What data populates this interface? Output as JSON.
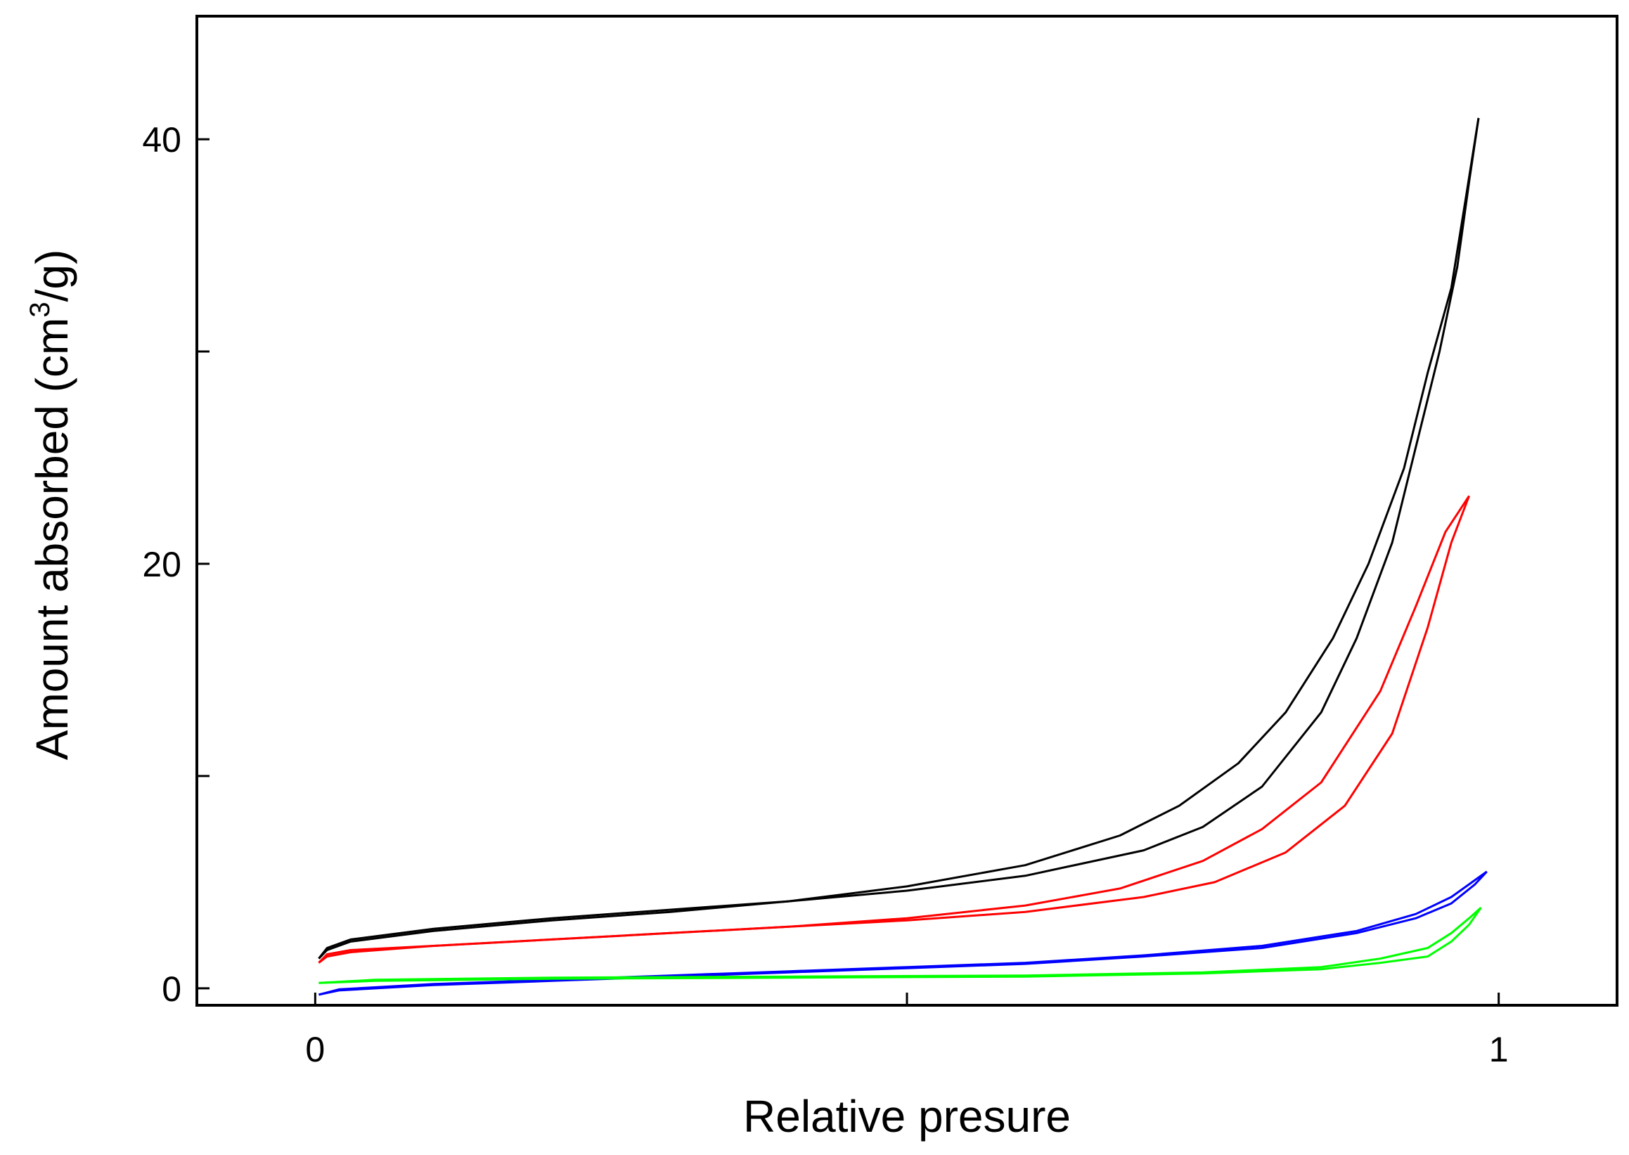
{
  "chart_data": {
    "type": "line",
    "title": "",
    "xlabel": "Relative presure",
    "ylabel": {
      "prefix": "Amount absorbed (cm",
      "superscript": "3",
      "suffix": "/g)"
    },
    "xlim": [
      -0.1,
      1.1
    ],
    "ylim": [
      -0.8,
      45.8
    ],
    "x_ticks": [
      {
        "value": 0,
        "label": "0"
      },
      {
        "value": 0.5,
        "label": ""
      },
      {
        "value": 1,
        "label": "1"
      }
    ],
    "y_ticks": [
      {
        "value": 0,
        "label": "0"
      },
      {
        "value": 10,
        "label": ""
      },
      {
        "value": 20,
        "label": "20"
      },
      {
        "value": 30,
        "label": ""
      },
      {
        "value": 40,
        "label": "40"
      }
    ],
    "grid": false,
    "series": [
      {
        "name": "black",
        "color": "#000000",
        "adsorption": [
          [
            0.003,
            1.4
          ],
          [
            0.01,
            1.8
          ],
          [
            0.03,
            2.2
          ],
          [
            0.1,
            2.7
          ],
          [
            0.2,
            3.2
          ],
          [
            0.3,
            3.6
          ],
          [
            0.4,
            4.1
          ],
          [
            0.5,
            4.6
          ],
          [
            0.6,
            5.3
          ],
          [
            0.7,
            6.5
          ],
          [
            0.75,
            7.6
          ],
          [
            0.8,
            9.5
          ],
          [
            0.85,
            13
          ],
          [
            0.88,
            16.5
          ],
          [
            0.91,
            21
          ],
          [
            0.93,
            25.5
          ],
          [
            0.95,
            30
          ],
          [
            0.965,
            34
          ],
          [
            0.975,
            38
          ],
          [
            0.983,
            41
          ]
        ],
        "desorption": [
          [
            0.003,
            1.4
          ],
          [
            0.01,
            1.9
          ],
          [
            0.03,
            2.3
          ],
          [
            0.1,
            2.8
          ],
          [
            0.2,
            3.3
          ],
          [
            0.3,
            3.7
          ],
          [
            0.4,
            4.1
          ],
          [
            0.5,
            4.8
          ],
          [
            0.6,
            5.8
          ],
          [
            0.68,
            7.2
          ],
          [
            0.73,
            8.6
          ],
          [
            0.78,
            10.6
          ],
          [
            0.82,
            13
          ],
          [
            0.86,
            16.5
          ],
          [
            0.89,
            20
          ],
          [
            0.92,
            24.5
          ],
          [
            0.94,
            29
          ],
          [
            0.96,
            33
          ],
          [
            0.973,
            37.5
          ],
          [
            0.983,
            41
          ]
        ]
      },
      {
        "name": "red",
        "color": "#ff0000",
        "adsorption": [
          [
            0.003,
            1.2
          ],
          [
            0.01,
            1.5
          ],
          [
            0.03,
            1.7
          ],
          [
            0.1,
            2.0
          ],
          [
            0.2,
            2.3
          ],
          [
            0.3,
            2.6
          ],
          [
            0.4,
            2.9
          ],
          [
            0.5,
            3.2
          ],
          [
            0.6,
            3.6
          ],
          [
            0.7,
            4.3
          ],
          [
            0.76,
            5.0
          ],
          [
            0.82,
            6.4
          ],
          [
            0.87,
            8.6
          ],
          [
            0.91,
            12
          ],
          [
            0.94,
            17
          ],
          [
            0.96,
            21
          ],
          [
            0.975,
            23.2
          ]
        ],
        "desorption": [
          [
            0.003,
            1.2
          ],
          [
            0.01,
            1.6
          ],
          [
            0.03,
            1.8
          ],
          [
            0.1,
            2.0
          ],
          [
            0.2,
            2.3
          ],
          [
            0.3,
            2.6
          ],
          [
            0.4,
            2.9
          ],
          [
            0.5,
            3.3
          ],
          [
            0.6,
            3.9
          ],
          [
            0.68,
            4.7
          ],
          [
            0.75,
            6.0
          ],
          [
            0.8,
            7.5
          ],
          [
            0.85,
            9.7
          ],
          [
            0.9,
            14
          ],
          [
            0.93,
            18
          ],
          [
            0.955,
            21.5
          ],
          [
            0.975,
            23.2
          ]
        ]
      },
      {
        "name": "blue",
        "color": "#0000ff",
        "adsorption": [
          [
            0.003,
            -0.3
          ],
          [
            0.02,
            -0.1
          ],
          [
            0.1,
            0.15
          ],
          [
            0.2,
            0.35
          ],
          [
            0.3,
            0.55
          ],
          [
            0.4,
            0.75
          ],
          [
            0.5,
            0.95
          ],
          [
            0.6,
            1.15
          ],
          [
            0.7,
            1.5
          ],
          [
            0.8,
            1.9
          ],
          [
            0.88,
            2.6
          ],
          [
            0.93,
            3.3
          ],
          [
            0.96,
            4.0
          ],
          [
            0.98,
            4.9
          ],
          [
            0.99,
            5.5
          ]
        ],
        "desorption": [
          [
            0.003,
            -0.3
          ],
          [
            0.02,
            -0.05
          ],
          [
            0.1,
            0.2
          ],
          [
            0.2,
            0.4
          ],
          [
            0.3,
            0.6
          ],
          [
            0.4,
            0.8
          ],
          [
            0.5,
            1.0
          ],
          [
            0.6,
            1.2
          ],
          [
            0.7,
            1.55
          ],
          [
            0.8,
            2.0
          ],
          [
            0.88,
            2.7
          ],
          [
            0.93,
            3.5
          ],
          [
            0.96,
            4.3
          ],
          [
            0.98,
            5.1
          ],
          [
            0.99,
            5.5
          ]
        ]
      },
      {
        "name": "green",
        "color": "#00ff00",
        "adsorption": [
          [
            0.003,
            0.25
          ],
          [
            0.05,
            0.35
          ],
          [
            0.2,
            0.45
          ],
          [
            0.4,
            0.5
          ],
          [
            0.6,
            0.55
          ],
          [
            0.75,
            0.7
          ],
          [
            0.85,
            0.9
          ],
          [
            0.9,
            1.2
          ],
          [
            0.94,
            1.5
          ],
          [
            0.96,
            2.2
          ],
          [
            0.975,
            3.0
          ],
          [
            0.985,
            3.8
          ]
        ],
        "desorption": [
          [
            0.003,
            0.25
          ],
          [
            0.05,
            0.4
          ],
          [
            0.2,
            0.5
          ],
          [
            0.4,
            0.55
          ],
          [
            0.6,
            0.6
          ],
          [
            0.75,
            0.75
          ],
          [
            0.85,
            1.0
          ],
          [
            0.9,
            1.4
          ],
          [
            0.94,
            1.9
          ],
          [
            0.96,
            2.6
          ],
          [
            0.975,
            3.3
          ],
          [
            0.985,
            3.8
          ]
        ]
      }
    ]
  }
}
